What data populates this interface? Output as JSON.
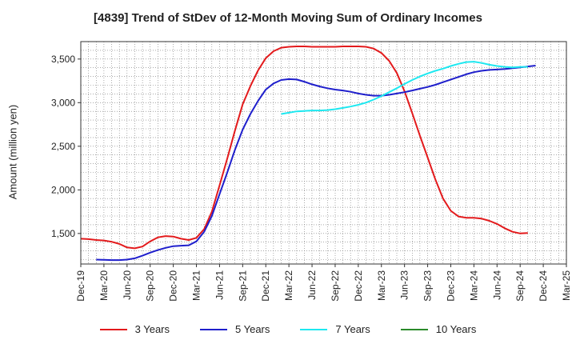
{
  "chart_data": {
    "type": "line",
    "title": "[4839]  Trend of StDev of 12-Month Moving Sum of Ordinary Incomes",
    "xlabel": "",
    "ylabel": "Amount (million yen)",
    "ylim": [
      1150,
      3700
    ],
    "yticks": [
      1500,
      2000,
      2500,
      3000,
      3500
    ],
    "ytick_labels": [
      "1,500",
      "2,000",
      "2,500",
      "3,000",
      "3,500"
    ],
    "x_start": "Dec-19",
    "x_months": 63,
    "xtick_labels": [
      "Dec-19",
      "Mar-20",
      "Jun-20",
      "Sep-20",
      "Dec-20",
      "Mar-21",
      "Jun-21",
      "Sep-21",
      "Dec-21",
      "Mar-22",
      "Jun-22",
      "Sep-22",
      "Dec-22",
      "Mar-23",
      "Jun-23",
      "Sep-23",
      "Dec-23",
      "Mar-24",
      "Jun-24",
      "Sep-24",
      "Dec-24",
      "Mar-25"
    ],
    "grid": true,
    "legend_position": "bottom",
    "series": [
      {
        "name": "3 Years",
        "color": "#e31a1c",
        "start_index": 0,
        "values": [
          1440,
          1435,
          1425,
          1420,
          1405,
          1380,
          1340,
          1330,
          1350,
          1410,
          1455,
          1470,
          1465,
          1440,
          1425,
          1450,
          1550,
          1750,
          2050,
          2360,
          2680,
          2980,
          3190,
          3370,
          3510,
          3590,
          3630,
          3640,
          3645,
          3645,
          3640,
          3640,
          3640,
          3640,
          3645,
          3645,
          3645,
          3640,
          3620,
          3570,
          3480,
          3340,
          3130,
          2880,
          2620,
          2370,
          2120,
          1900,
          1760,
          1695,
          1680,
          1680,
          1670,
          1645,
          1610,
          1560,
          1520,
          1500,
          1505
        ]
      },
      {
        "name": "5 Years",
        "color": "#1f1fcc",
        "start_index": 2,
        "values": [
          1200,
          1198,
          1195,
          1195,
          1200,
          1215,
          1245,
          1280,
          1310,
          1335,
          1355,
          1360,
          1365,
          1410,
          1520,
          1700,
          1950,
          2200,
          2460,
          2690,
          2870,
          3020,
          3150,
          3220,
          3260,
          3270,
          3265,
          3240,
          3210,
          3185,
          3165,
          3150,
          3140,
          3125,
          3105,
          3090,
          3080,
          3080,
          3090,
          3105,
          3120,
          3140,
          3160,
          3180,
          3205,
          3235,
          3265,
          3295,
          3325,
          3350,
          3365,
          3375,
          3380,
          3385,
          3395,
          3405,
          3415,
          3425
        ]
      },
      {
        "name": "7 Years",
        "color": "#1ee8f0",
        "start_index": 26,
        "values": [
          2870,
          2885,
          2900,
          2905,
          2910,
          2910,
          2915,
          2925,
          2940,
          2955,
          2975,
          3000,
          3035,
          3075,
          3120,
          3165,
          3215,
          3260,
          3300,
          3335,
          3365,
          3390,
          3420,
          3445,
          3465,
          3470,
          3455,
          3435,
          3420,
          3410,
          3405,
          3410,
          3410
        ]
      },
      {
        "name": "10 Years",
        "color": "#2a8a2a",
        "start_index": 0,
        "values": []
      }
    ]
  }
}
